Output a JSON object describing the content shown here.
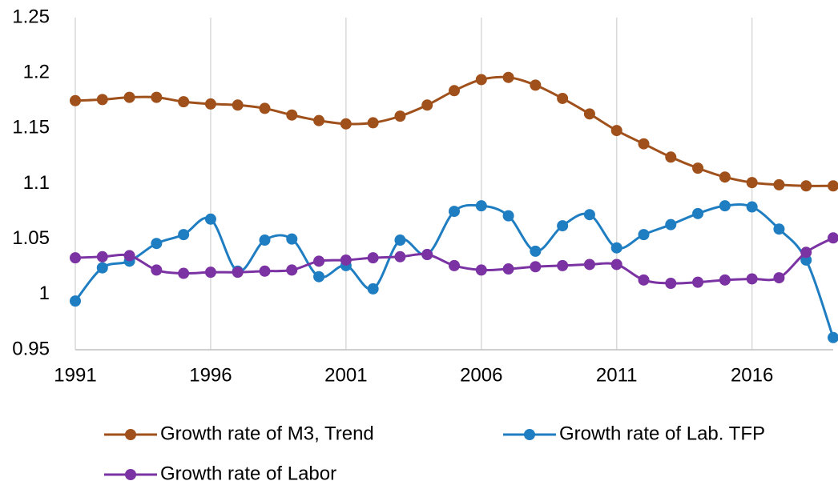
{
  "chart_data": {
    "type": "line",
    "x": [
      1991,
      1992,
      1993,
      1994,
      1995,
      1996,
      1997,
      1998,
      1999,
      2000,
      2001,
      2002,
      2003,
      2004,
      2005,
      2006,
      2007,
      2008,
      2009,
      2010,
      2011,
      2012,
      2013,
      2014,
      2015,
      2016,
      2017,
      2018,
      2019
    ],
    "xlim": [
      1991,
      2019
    ],
    "xticks": [
      1991,
      1996,
      2001,
      2006,
      2011,
      2016
    ],
    "ylim": [
      0.95,
      1.25
    ],
    "yticks": [
      1.25,
      1.2,
      1.15,
      1.1,
      1.05,
      1,
      0.95
    ],
    "grid": "x",
    "smooth": true,
    "series": [
      {
        "name": "Growth rate of M3, Trend",
        "color": "#a0501a",
        "values": [
          1.175,
          1.176,
          1.178,
          1.178,
          1.174,
          1.172,
          1.171,
          1.168,
          1.162,
          1.157,
          1.154,
          1.155,
          1.161,
          1.171,
          1.184,
          1.194,
          1.196,
          1.189,
          1.177,
          1.163,
          1.148,
          1.136,
          1.124,
          1.114,
          1.106,
          1.101,
          1.099,
          1.098,
          1.098
        ]
      },
      {
        "name": "Growth rate of Lab. TFP",
        "color": "#1f7dc1",
        "values": [
          0.994,
          1.024,
          1.03,
          1.046,
          1.054,
          1.068,
          1.021,
          1.049,
          1.05,
          1.016,
          1.026,
          1.005,
          1.049,
          1.036,
          1.075,
          1.08,
          1.071,
          1.039,
          1.062,
          1.072,
          1.042,
          1.054,
          1.063,
          1.073,
          1.08,
          1.079,
          1.059,
          1.031,
          0.961
        ]
      },
      {
        "name": "Growth rate of Labor",
        "color": "#7b32a3",
        "values": [
          1.033,
          1.034,
          1.035,
          1.022,
          1.019,
          1.02,
          1.02,
          1.021,
          1.022,
          1.03,
          1.031,
          1.033,
          1.034,
          1.036,
          1.026,
          1.022,
          1.023,
          1.025,
          1.026,
          1.027,
          1.027,
          1.013,
          1.01,
          1.011,
          1.013,
          1.014,
          1.015,
          1.038,
          1.051
        ]
      }
    ]
  }
}
